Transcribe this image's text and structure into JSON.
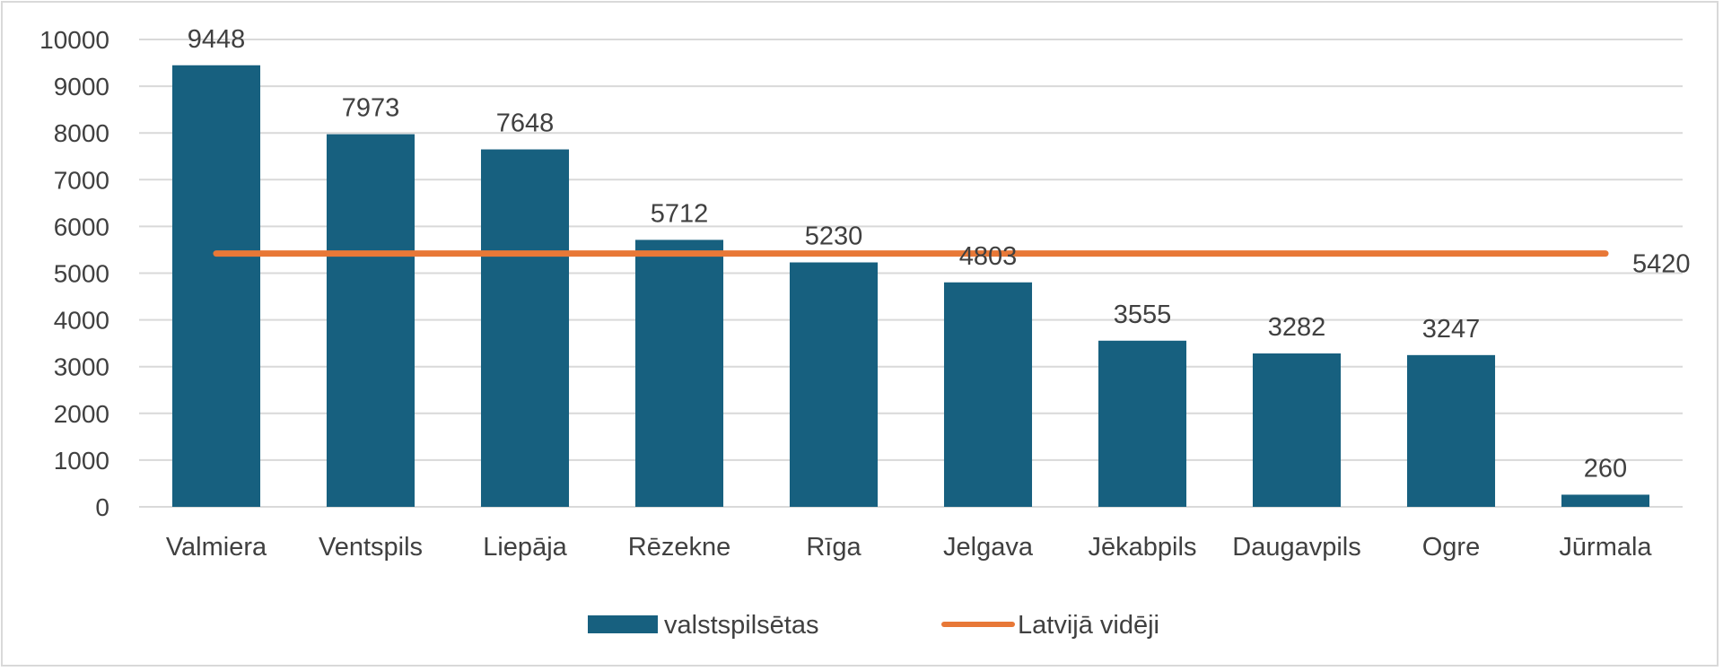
{
  "chart_data": {
    "type": "bar",
    "categories": [
      "Valmiera",
      "Ventspils",
      "Liepāja",
      "Rēzekne",
      "Rīga",
      "Jelgava",
      "Jēkabpils",
      "Daugavpils",
      "Ogre",
      "Jūrmala"
    ],
    "series": [
      {
        "name": "valstspilsētas",
        "type": "bar",
        "color": "#17607f",
        "values": [
          9448,
          7973,
          7648,
          5712,
          5230,
          4803,
          3555,
          3282,
          3247,
          260
        ]
      },
      {
        "name": "Latvijā vidēji",
        "type": "line",
        "color": "#e87837",
        "values": [
          5420,
          5420,
          5420,
          5420,
          5420,
          5420,
          5420,
          5420,
          5420,
          5420
        ],
        "label": "5420"
      }
    ],
    "yticks": [
      "0",
      "1000",
      "2000",
      "3000",
      "4000",
      "5000",
      "6000",
      "7000",
      "8000",
      "9000",
      "10000"
    ],
    "ylim": [
      0,
      10000
    ],
    "grid": true,
    "legend_position": "bottom"
  }
}
